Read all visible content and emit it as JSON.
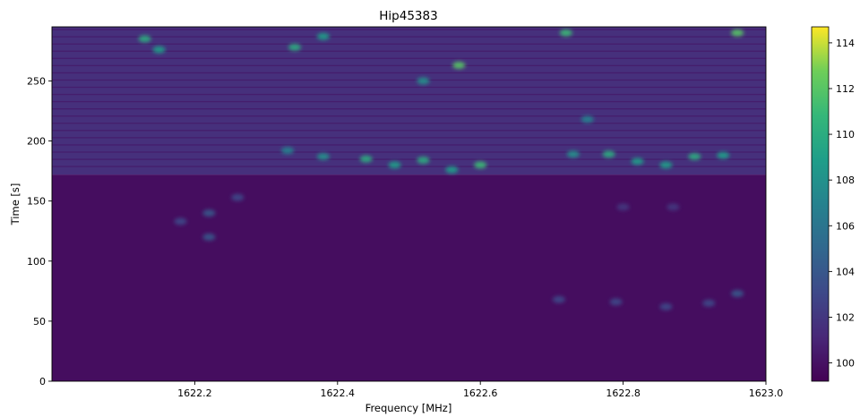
{
  "chart_data": {
    "type": "heatmap",
    "title": "Hip45383",
    "xlabel": "Frequency [MHz]",
    "ylabel": "Time [s]",
    "xlim": [
      1622.0,
      1623.0
    ],
    "ylim": [
      0,
      295
    ],
    "x_ticks": [
      1622.2,
      1622.4,
      1622.6,
      1622.8,
      1623.0
    ],
    "x_tick_labels": [
      "1622.2",
      "1622.4",
      "1622.6",
      "1622.8",
      "1623.0"
    ],
    "y_ticks": [
      0,
      50,
      100,
      150,
      200,
      250
    ],
    "y_tick_labels": [
      "0",
      "50",
      "100",
      "150",
      "200",
      "250"
    ],
    "colorbar": {
      "colormap": "viridis",
      "range": [
        99.2,
        114.7
      ],
      "ticks": [
        100,
        102,
        104,
        106,
        108,
        110,
        112,
        114
      ],
      "tick_labels": [
        "100",
        "102",
        "104",
        "106",
        "108",
        "110",
        "112",
        "114"
      ]
    },
    "background_level": 99.8,
    "regions": [
      {
        "t0": 172,
        "t1": 295,
        "level": 101.6
      },
      {
        "t0": 0,
        "t1": 172,
        "level": 99.8
      }
    ],
    "features": [
      {
        "f": 1622.13,
        "t": 285,
        "level": 110
      },
      {
        "f": 1622.15,
        "t": 276,
        "level": 109
      },
      {
        "f": 1622.34,
        "t": 278,
        "level": 110
      },
      {
        "f": 1622.38,
        "t": 287,
        "level": 109
      },
      {
        "f": 1622.57,
        "t": 263,
        "level": 112
      },
      {
        "f": 1622.52,
        "t": 250,
        "level": 108
      },
      {
        "f": 1622.72,
        "t": 290,
        "level": 111
      },
      {
        "f": 1622.75,
        "t": 218,
        "level": 107
      },
      {
        "f": 1622.96,
        "t": 290,
        "level": 112
      },
      {
        "f": 1622.33,
        "t": 192,
        "level": 107
      },
      {
        "f": 1622.38,
        "t": 187,
        "level": 108
      },
      {
        "f": 1622.44,
        "t": 185,
        "level": 110
      },
      {
        "f": 1622.48,
        "t": 180,
        "level": 109
      },
      {
        "f": 1622.52,
        "t": 184,
        "level": 110
      },
      {
        "f": 1622.56,
        "t": 176,
        "level": 109
      },
      {
        "f": 1622.6,
        "t": 180,
        "level": 111
      },
      {
        "f": 1622.73,
        "t": 189,
        "level": 108
      },
      {
        "f": 1622.78,
        "t": 189,
        "level": 110
      },
      {
        "f": 1622.82,
        "t": 183,
        "level": 109
      },
      {
        "f": 1622.86,
        "t": 180,
        "level": 109
      },
      {
        "f": 1622.9,
        "t": 187,
        "level": 110
      },
      {
        "f": 1622.94,
        "t": 188,
        "level": 109
      },
      {
        "f": 1622.22,
        "t": 140,
        "level": 104
      },
      {
        "f": 1622.22,
        "t": 120,
        "level": 104
      },
      {
        "f": 1622.18,
        "t": 133,
        "level": 103
      },
      {
        "f": 1622.26,
        "t": 153,
        "level": 103
      },
      {
        "f": 1622.71,
        "t": 68,
        "level": 103
      },
      {
        "f": 1622.79,
        "t": 66,
        "level": 103
      },
      {
        "f": 1622.86,
        "t": 62,
        "level": 103
      },
      {
        "f": 1622.92,
        "t": 65,
        "level": 103
      },
      {
        "f": 1622.96,
        "t": 73,
        "level": 104
      },
      {
        "f": 1622.8,
        "t": 145,
        "level": 102
      },
      {
        "f": 1622.87,
        "t": 145,
        "level": 102
      }
    ]
  }
}
